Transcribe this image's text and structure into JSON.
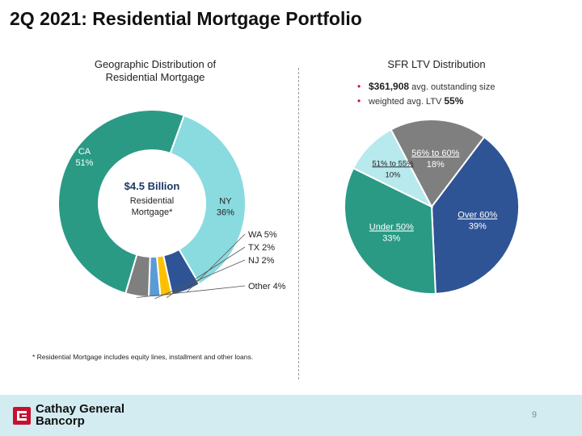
{
  "slide": {
    "title": "2Q 2021: Residential Mortgage Portfolio",
    "page_number": "9"
  },
  "footer": {
    "logo_line1": "Cathay General",
    "logo_line2": "Bancorp",
    "logo_icon": "cathay-logo-icon"
  },
  "footnote": "* Residential Mortgage includes equity lines, installment and other loans.",
  "ltv_bullets": {
    "avg_size_value": "$361,908",
    "avg_size_label": "avg. outstanding size",
    "ltv_label": "weighted avg. LTV",
    "ltv_value": "55%"
  },
  "chart_data": [
    {
      "type": "donut",
      "title": "Geographic Distribution of Residential Mortgage",
      "center_label": {
        "value": "$4.5 Billion",
        "line1": "Residential",
        "line2": "Mortgage*"
      },
      "slices": [
        {
          "label": "NY",
          "value": 36,
          "display": "36%",
          "color": "#8adbe0"
        },
        {
          "label": "WA",
          "value": 5,
          "display": "WA 5%",
          "color": "#2e5496"
        },
        {
          "label": "TX",
          "value": 2,
          "display": "TX 2%",
          "color": "#ffc000"
        },
        {
          "label": "NJ",
          "value": 2,
          "display": "NJ 2%",
          "color": "#5b9bd5"
        },
        {
          "label": "Other",
          "value": 4,
          "display": "Other 4%",
          "color": "#7f7f7f"
        },
        {
          "label": "CA",
          "value": 51,
          "display": "51%",
          "color": "#2a9a85"
        }
      ]
    },
    {
      "type": "pie",
      "title": "SFR LTV Distribution",
      "slices": [
        {
          "label": "Over 60%",
          "value": 39,
          "display": "39%",
          "color": "#2e5496"
        },
        {
          "label": "Under 50%",
          "value": 33,
          "display": "33%",
          "color": "#2a9a85"
        },
        {
          "label": "51% to 55%",
          "value": 10,
          "display": "10%",
          "color": "#b8e9ec"
        },
        {
          "label": "56% to 60%",
          "value": 18,
          "display": "18%",
          "color": "#7f7f7f"
        }
      ]
    }
  ]
}
